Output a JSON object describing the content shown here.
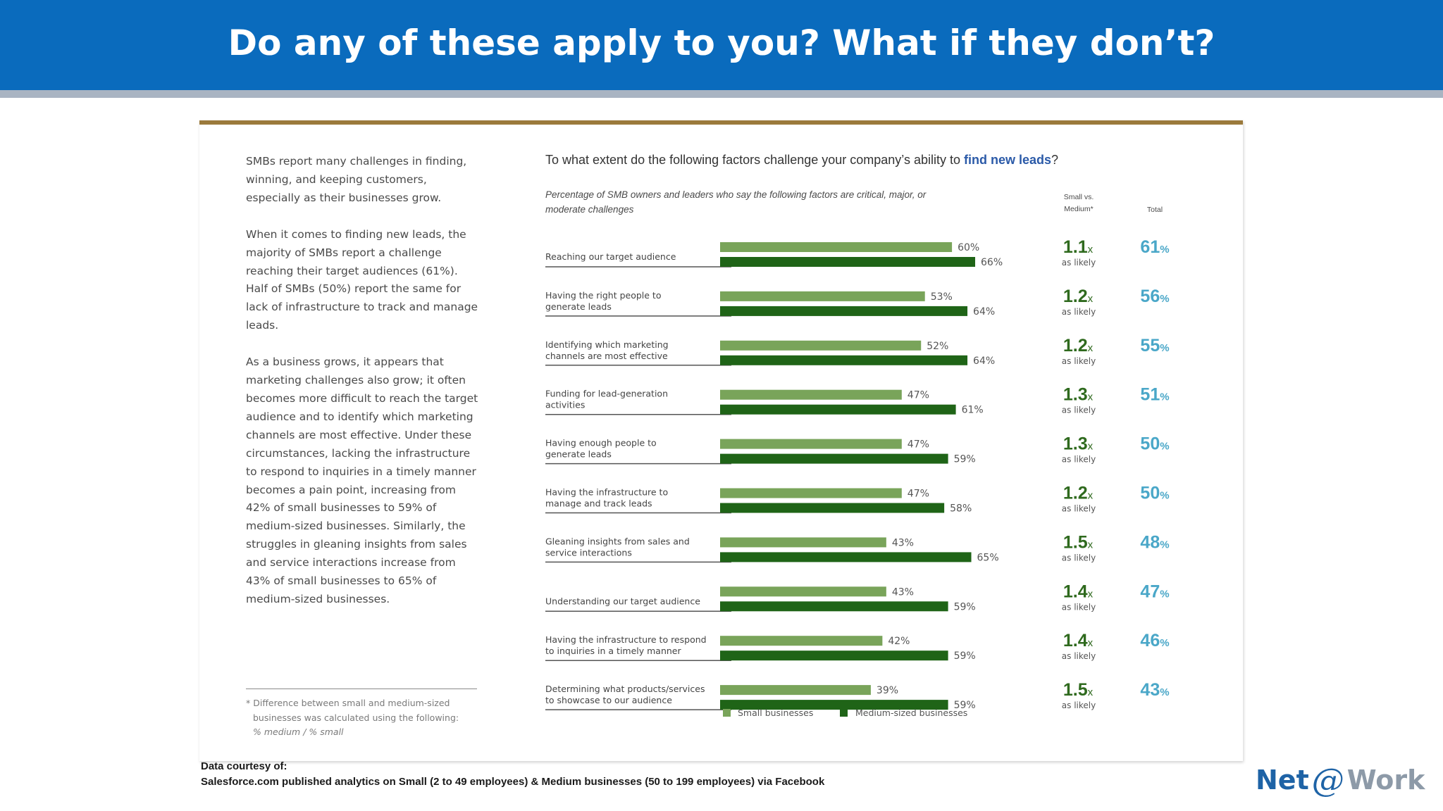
{
  "header": {
    "title": "Do any of these apply to you? What if they don’t?"
  },
  "intro": {
    "paragraphs": [
      "SMBs report many challenges in finding, winning, and keeping customers, especially as their businesses grow.",
      "When it comes to finding new leads, the majority of SMBs report a challenge reaching their target audiences (61%). Half of SMBs (50%) report the same for lack of infrastructure to track and manage leads.",
      "As a business grows, it appears that marketing challenges also grow; it often becomes more difficult to reach the target audience and to identify which marketing channels are most effective. Under these circumstances, lacking the infrastructure to respond to inquiries in a timely manner becomes a pain point, increasing from 42% of small businesses to 59% of medium-sized businesses. Similarly, the struggles in gleaning insights from sales and service interactions increase from 43% of small businesses to 65% of medium-sized businesses."
    ]
  },
  "footnote": {
    "line1": "* Difference between small and medium-sized",
    "line2": "businesses was calculated using the following:",
    "formula": "% medium / % small"
  },
  "question": {
    "prefix": "To what extent do the following factors challenge your company’s ability to ",
    "highlight": "find new leads",
    "suffix": "?"
  },
  "subtitle": "Percentage of SMB owners and leaders who say the following factors are critical, major, or moderate challenges",
  "columns": {
    "ratio_header_line1": "Small vs.",
    "ratio_header_line2": "Medium*",
    "total_header": "Total",
    "ratio_suffix": "x",
    "ratio_caption": "as likely"
  },
  "colors": {
    "small": "#79a45a",
    "medium": "#1f6417",
    "ratio_text": "#2f6a1e",
    "total_text": "#4aa7c8"
  },
  "chart_data": {
    "type": "bar",
    "orientation": "horizontal",
    "unit": "%",
    "xlim": [
      0,
      100
    ],
    "categories": [
      [
        "Reaching our target audience"
      ],
      [
        "Having the right people to",
        "generate leads"
      ],
      [
        "Identifying which marketing",
        "channels are most effective"
      ],
      [
        "Funding for lead-generation",
        "activities"
      ],
      [
        "Having enough people to",
        "generate leads"
      ],
      [
        "Having the infrastructure to",
        "manage and track leads"
      ],
      [
        "Gleaning insights from sales and",
        "service interactions"
      ],
      [
        "Understanding our target audience"
      ],
      [
        "Having the infrastructure to respond",
        "to inquiries in a timely manner"
      ],
      [
        "Determining what products/services",
        "to showcase to our audience"
      ]
    ],
    "series": [
      {
        "name": "Small businesses",
        "values": [
          60,
          53,
          52,
          47,
          47,
          47,
          43,
          43,
          42,
          39
        ]
      },
      {
        "name": "Medium-sized businesses",
        "values": [
          66,
          64,
          64,
          61,
          59,
          58,
          65,
          59,
          59,
          59
        ]
      }
    ],
    "ratio": [
      1.1,
      1.2,
      1.2,
      1.3,
      1.3,
      1.2,
      1.5,
      1.4,
      1.4,
      1.5
    ],
    "total": [
      61,
      56,
      55,
      51,
      50,
      50,
      48,
      47,
      46,
      43
    ],
    "legend": [
      "Small businesses",
      "Medium-sized businesses"
    ],
    "legend_position": "bottom"
  },
  "source": {
    "line1": "Data courtesy of:",
    "line2": "Salesforce.com published analytics on Small (2 to 49 employees) & Medium businesses (50 to 199 employees) via Facebook"
  },
  "logo": {
    "part1": "Net",
    "part2": "@",
    "part3": "Work"
  }
}
